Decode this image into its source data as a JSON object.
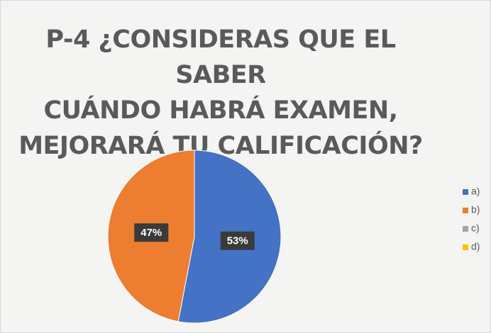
{
  "chart_data": {
    "type": "pie",
    "title": "P-4 ¿CONSIDERAS QUE EL SABER\nCUÁNDO HABRÁ EXAMEN,\nMEJORARÁ TU CALIFICACIÓN?",
    "categories": [
      "a)",
      "b)",
      "c)",
      "d)"
    ],
    "values": [
      53,
      47,
      0,
      0
    ],
    "value_labels": [
      "53%",
      "47%",
      null,
      null
    ],
    "colors": [
      "#4472c4",
      "#ed7d31",
      "#a5a5a5",
      "#ffc000"
    ],
    "legend": "right"
  }
}
